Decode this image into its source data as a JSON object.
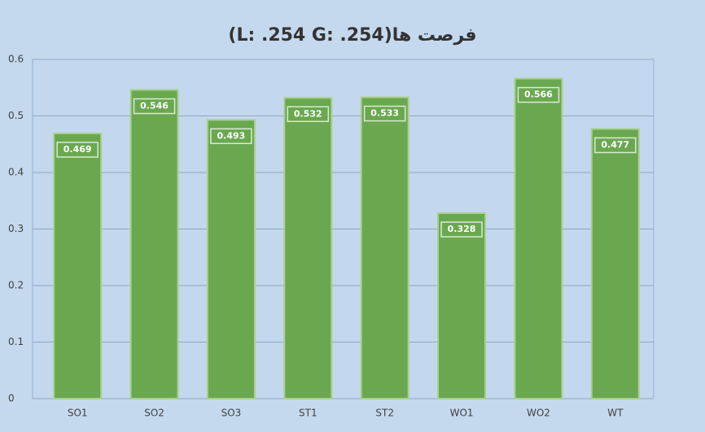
{
  "chart_data": {
    "type": "bar",
    "title": "فرصت ها(L: .254 G: .254)",
    "categories": [
      "SO1",
      "SO2",
      "SO3",
      "ST1",
      "ST2",
      "WO1",
      "WO2",
      "WT"
    ],
    "values": [
      0.469,
      0.546,
      0.493,
      0.532,
      0.533,
      0.328,
      0.566,
      0.477
    ],
    "color": "#6aa84f",
    "ylim": [
      0,
      0.6
    ],
    "yticks": [
      0,
      0.1,
      0.2,
      0.3,
      0.4,
      0.5,
      0.6
    ],
    "grid": true
  }
}
